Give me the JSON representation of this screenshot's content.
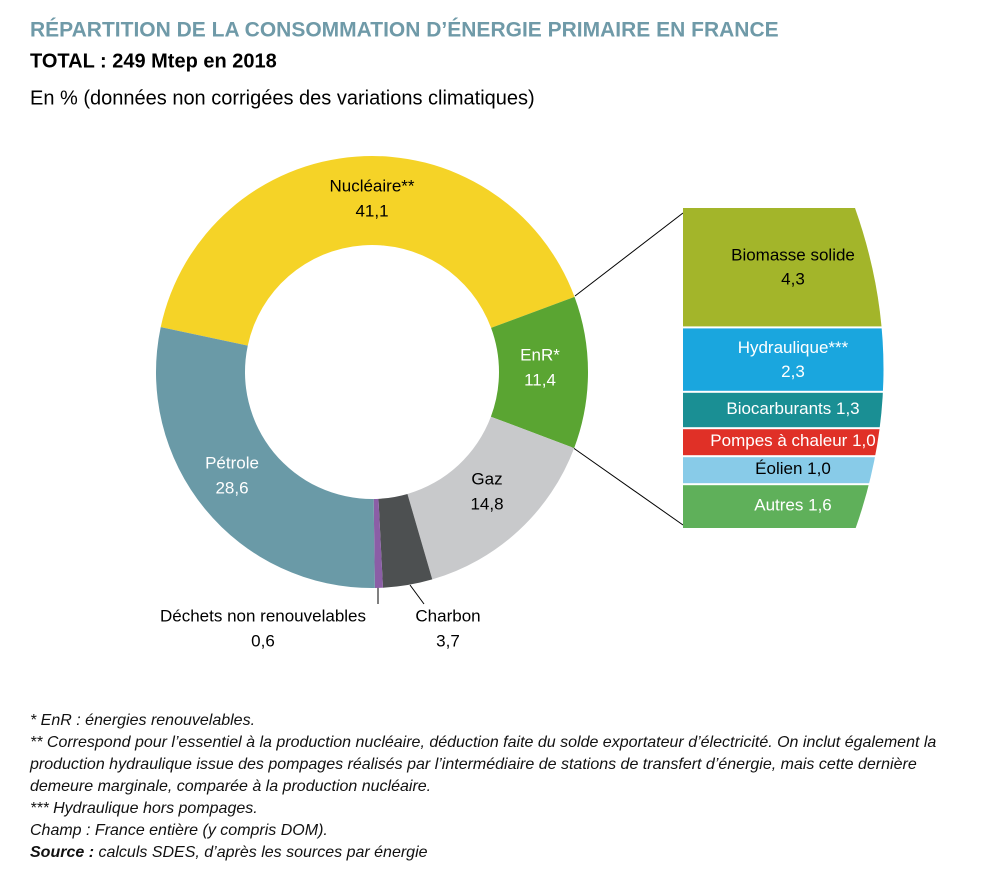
{
  "chart_data": {
    "type": "donut",
    "title": "RÉPARTITION DE LA CONSOMMATION D’ÉNERGIE PRIMAIRE EN FRANCE",
    "subtitle": "TOTAL : 249 Mtep en 2018",
    "unit_note": "En % (données non corrigées des variations climatiques)",
    "categories": [
      "Nucléaire**",
      "EnR*",
      "Gaz",
      "Charbon",
      "Déchets non renouvelables",
      "Pétrole"
    ],
    "values": [
      41.1,
      11.4,
      14.8,
      3.7,
      0.6,
      28.6
    ],
    "value_labels": [
      "41,1",
      "11,4",
      "14,8",
      "3,7",
      "0,6",
      "28,6"
    ],
    "colors": [
      "#f5d327",
      "#5aa532",
      "#c8c9cb",
      "#4d5051",
      "#8b5ea6",
      "#6a9aa7"
    ],
    "breakdown": {
      "type": "bar",
      "categories": [
        "Biomasse solide",
        "Hydraulique***",
        "Biocarburants",
        "Pompes à chaleur",
        "Éolien",
        "Autres"
      ],
      "values": [
        4.3,
        2.3,
        1.3,
        1.0,
        1.0,
        1.6
      ],
      "value_labels": [
        "4,3",
        "2,3",
        "1,3",
        "1,0",
        "1,0",
        "1,6"
      ],
      "colors": [
        "#a3b52a",
        "#1aa6de",
        "#1a8f94",
        "#e03027",
        "#88cbe8",
        "#5fb05a"
      ]
    }
  },
  "notes": [
    "* EnR : énergies renouvelables.",
    "** Correspond pour l’essentiel à la production nucléaire, déduction faite du solde exportateur d’électricité. On inclut également la production hydraulique issue des pompages réalisés par l’intermédiaire de stations de transfert d’énergie, mais cette dernière demeure marginale, comparée à la production nucléaire.",
    "*** Hydraulique hors pompages.",
    "Champ : France entière (y compris DOM)."
  ],
  "source": {
    "label": "Source :",
    "text": "calculs SDES, d’après les sources par énergie"
  }
}
